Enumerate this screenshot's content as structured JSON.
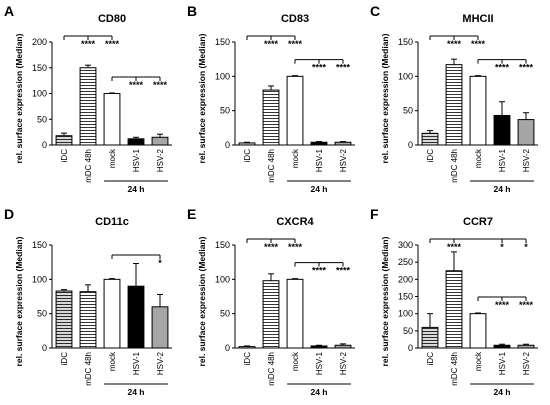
{
  "chart_data": [
    {
      "panel": "A",
      "type": "bar",
      "title": "CD80",
      "ylabel": "rel. surface expression (Median)",
      "group_label": "24 h",
      "categories": [
        "iDC",
        "mDC 48h",
        "mock",
        "HSV-1",
        "HSV-2"
      ],
      "values": [
        18,
        150,
        100,
        12,
        15
      ],
      "errors": [
        5,
        5,
        1,
        3,
        6
      ],
      "colors": [
        "#d9d9d9",
        "#ffffff",
        "#ffffff",
        "#000000",
        "#a6a6a6"
      ],
      "hatch": [
        true,
        true,
        false,
        false,
        false
      ],
      "ylim": [
        0,
        200
      ],
      "yticks": [
        0,
        50,
        100,
        150,
        200
      ],
      "significance_vs_idc": [
        null,
        "****",
        "****",
        null,
        null
      ],
      "significance_vs_mock": [
        null,
        null,
        null,
        "****",
        "****"
      ]
    },
    {
      "panel": "B",
      "type": "bar",
      "title": "CD83",
      "ylabel": "rel. surface expression (Median)",
      "group_label": "24 h",
      "categories": [
        "iDC",
        "mDC 48h",
        "mock",
        "HSV-1",
        "HSV-2"
      ],
      "values": [
        3,
        80,
        100,
        4,
        4
      ],
      "errors": [
        1,
        6,
        1,
        1,
        1
      ],
      "colors": [
        "#d9d9d9",
        "#ffffff",
        "#ffffff",
        "#000000",
        "#a6a6a6"
      ],
      "hatch": [
        true,
        true,
        false,
        false,
        false
      ],
      "ylim": [
        0,
        150
      ],
      "yticks": [
        0,
        50,
        100,
        150
      ],
      "significance_vs_idc": [
        null,
        "****",
        "****",
        null,
        null
      ],
      "significance_vs_mock": [
        null,
        null,
        null,
        "****",
        "****"
      ]
    },
    {
      "panel": "C",
      "type": "bar",
      "title": "MHCII",
      "ylabel": "rel. surface expression (Median)",
      "group_label": "24 h",
      "categories": [
        "iDC",
        "mDC 48h",
        "mock",
        "HSV-1",
        "HSV-2"
      ],
      "values": [
        17,
        117,
        100,
        43,
        37
      ],
      "errors": [
        4,
        8,
        1,
        20,
        10
      ],
      "colors": [
        "#d9d9d9",
        "#ffffff",
        "#ffffff",
        "#000000",
        "#a6a6a6"
      ],
      "hatch": [
        true,
        true,
        false,
        false,
        false
      ],
      "ylim": [
        0,
        150
      ],
      "yticks": [
        0,
        50,
        100,
        150
      ],
      "significance_vs_idc": [
        null,
        "****",
        "****",
        null,
        null
      ],
      "significance_vs_mock": [
        null,
        null,
        null,
        "****",
        "****"
      ]
    },
    {
      "panel": "D",
      "type": "bar",
      "title": "CD11c",
      "ylabel": "rel. surface expression (Median)",
      "group_label": "24 h",
      "categories": [
        "iDC",
        "mDC 48h",
        "mock",
        "HSV-1",
        "HSV-2"
      ],
      "values": [
        83,
        82,
        100,
        90,
        60
      ],
      "errors": [
        2,
        10,
        1,
        33,
        18
      ],
      "colors": [
        "#d9d9d9",
        "#ffffff",
        "#ffffff",
        "#000000",
        "#a6a6a6"
      ],
      "hatch": [
        true,
        true,
        false,
        false,
        false
      ],
      "ylim": [
        0,
        150
      ],
      "yticks": [
        0,
        50,
        100,
        150
      ],
      "significance_vs_mock": [
        null,
        null,
        null,
        null,
        "*"
      ]
    },
    {
      "panel": "E",
      "type": "bar",
      "title": "CXCR4",
      "ylabel": "rel. surface expression (Median)",
      "group_label": "24 h",
      "categories": [
        "iDC",
        "mDC 48h",
        "mock",
        "HSV-1",
        "HSV-2"
      ],
      "values": [
        2,
        98,
        100,
        3,
        4
      ],
      "errors": [
        1,
        10,
        1,
        1,
        2
      ],
      "colors": [
        "#d9d9d9",
        "#ffffff",
        "#ffffff",
        "#000000",
        "#a6a6a6"
      ],
      "hatch": [
        true,
        true,
        false,
        false,
        false
      ],
      "ylim": [
        0,
        150
      ],
      "yticks": [
        0,
        50,
        100,
        150
      ],
      "significance_vs_idc": [
        null,
        "****",
        "****",
        null,
        null
      ],
      "significance_vs_mock": [
        null,
        null,
        null,
        "****",
        "****"
      ]
    },
    {
      "panel": "F",
      "type": "bar",
      "title": "CCR7",
      "ylabel": "rel. surface expression (Median)",
      "group_label": "24 h",
      "categories": [
        "iDC",
        "mDC 48h",
        "mock",
        "HSV-1",
        "HSV-2"
      ],
      "values": [
        60,
        225,
        100,
        8,
        8
      ],
      "errors": [
        40,
        55,
        2,
        3,
        3
      ],
      "colors": [
        "#d9d9d9",
        "#ffffff",
        "#ffffff",
        "#000000",
        "#a6a6a6"
      ],
      "hatch": [
        true,
        true,
        false,
        false,
        false
      ],
      "ylim": [
        0,
        300
      ],
      "yticks": [
        0,
        50,
        100,
        150,
        200,
        250,
        300
      ],
      "significance_vs_idc": [
        null,
        "****",
        null,
        "*",
        "*"
      ],
      "significance_vs_mock": [
        null,
        null,
        null,
        "****",
        "****"
      ]
    }
  ]
}
